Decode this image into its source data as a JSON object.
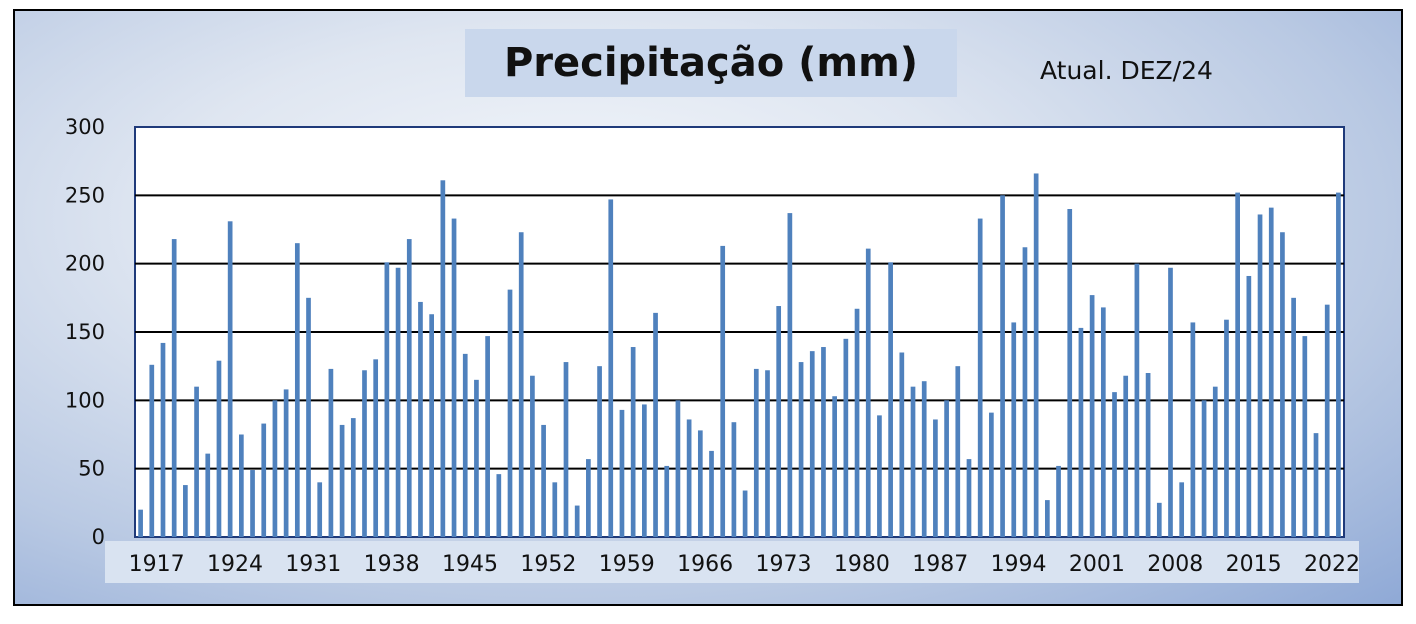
{
  "chart_data": {
    "type": "bar",
    "title": "Precipitação (mm)",
    "subtitle": "Atual. DEZ/24",
    "xlabel": "",
    "ylabel": "",
    "ylim": [
      0,
      300
    ],
    "yticks": [
      0,
      50,
      100,
      150,
      200,
      250,
      300
    ],
    "x_tick_labels": [
      "1917",
      "1924",
      "1931",
      "1938",
      "1945",
      "1952",
      "1959",
      "1966",
      "1973",
      "1980",
      "1987",
      "1994",
      "2001",
      "2008",
      "2015",
      "2022"
    ],
    "grid": true,
    "bar_color": "#4f81bd",
    "years": [
      1917,
      1918,
      1919,
      1920,
      1921,
      1922,
      1923,
      1924,
      1925,
      1926,
      1927,
      1928,
      1929,
      1930,
      1931,
      1932,
      1933,
      1934,
      1935,
      1936,
      1937,
      1938,
      1939,
      1940,
      1941,
      1942,
      1943,
      1944,
      1945,
      1946,
      1947,
      1948,
      1949,
      1950,
      1951,
      1952,
      1953,
      1954,
      1955,
      1956,
      1957,
      1958,
      1959,
      1960,
      1961,
      1962,
      1963,
      1964,
      1965,
      1966,
      1967,
      1968,
      1969,
      1970,
      1971,
      1972,
      1973,
      1974,
      1975,
      1976,
      1977,
      1978,
      1979,
      1980,
      1981,
      1982,
      1983,
      1984,
      1985,
      1986,
      1987,
      1988,
      1989,
      1990,
      1991,
      1992,
      1993,
      1994,
      1995,
      1996,
      1997,
      1998,
      1999,
      2000,
      2001,
      2002,
      2003,
      2004,
      2005,
      2006,
      2007,
      2008,
      2009,
      2010,
      2011,
      2012,
      2013,
      2014,
      2015,
      2016,
      2017,
      2018,
      2019,
      2020,
      2021,
      2022,
      2023,
      2024
    ],
    "values": [
      20,
      126,
      142,
      218,
      38,
      110,
      61,
      129,
      231,
      75,
      49,
      83,
      100,
      108,
      215,
      175,
      40,
      123,
      82,
      87,
      122,
      130,
      201,
      197,
      218,
      172,
      163,
      261,
      233,
      134,
      115,
      147,
      46,
      181,
      223,
      118,
      82,
      40,
      128,
      23,
      57,
      125,
      247,
      93,
      139,
      97,
      164,
      52,
      100,
      86,
      78,
      63,
      213,
      84,
      34,
      123,
      122,
      169,
      237,
      128,
      136,
      139,
      103,
      145,
      167,
      211,
      89,
      201,
      135,
      110,
      114,
      86,
      100,
      125,
      57,
      233,
      91,
      250,
      157,
      212,
      266,
      27,
      52,
      240,
      153,
      177,
      168,
      106,
      118,
      200,
      120,
      25,
      197,
      40,
      157,
      100,
      110,
      159,
      252,
      191,
      236,
      241,
      223,
      175,
      147,
      76,
      170,
      252
    ]
  }
}
